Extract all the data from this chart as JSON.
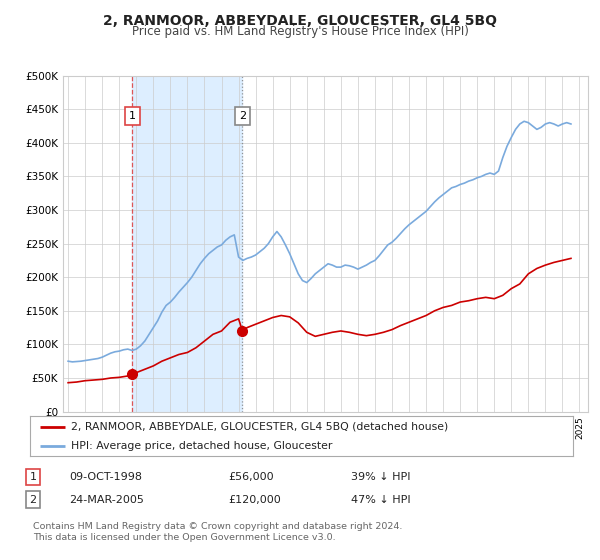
{
  "title": "2, RANMOOR, ABBEYDALE, GLOUCESTER, GL4 5BQ",
  "subtitle": "Price paid vs. HM Land Registry's House Price Index (HPI)",
  "ylim": [
    0,
    500000
  ],
  "yticks": [
    0,
    50000,
    100000,
    150000,
    200000,
    250000,
    300000,
    350000,
    400000,
    450000,
    500000
  ],
  "ytick_labels": [
    "£0",
    "£50K",
    "£100K",
    "£150K",
    "£200K",
    "£250K",
    "£300K",
    "£350K",
    "£400K",
    "£450K",
    "£500K"
  ],
  "xlim_start": 1994.7,
  "xlim_end": 2025.5,
  "xtick_years": [
    1995,
    1996,
    1997,
    1998,
    1999,
    2000,
    2001,
    2002,
    2003,
    2004,
    2005,
    2006,
    2007,
    2008,
    2009,
    2010,
    2011,
    2012,
    2013,
    2014,
    2015,
    2016,
    2017,
    2018,
    2019,
    2020,
    2021,
    2022,
    2023,
    2024,
    2025
  ],
  "sale1_x": 1998.77,
  "sale1_y": 56000,
  "sale1_label": "1",
  "sale2_x": 2005.23,
  "sale2_y": 120000,
  "sale2_label": "2",
  "sale1_vline_color": "#dd4444",
  "sale2_vline_color": "#888888",
  "sale1_dot_color": "#cc0000",
  "sale2_dot_color": "#cc0000",
  "hpi_line_color": "#7aaadd",
  "price_line_color": "#cc0000",
  "shading_color": "#ddeeff",
  "grid_color": "#cccccc",
  "background_color": "#ffffff",
  "legend_entry1": "2, RANMOOR, ABBEYDALE, GLOUCESTER, GL4 5BQ (detached house)",
  "legend_entry2": "HPI: Average price, detached house, Gloucester",
  "table_row1": [
    "1",
    "09-OCT-1998",
    "£56,000",
    "39% ↓ HPI"
  ],
  "table_row2": [
    "2",
    "24-MAR-2005",
    "£120,000",
    "47% ↓ HPI"
  ],
  "footer_line1": "Contains HM Land Registry data © Crown copyright and database right 2024.",
  "footer_line2": "This data is licensed under the Open Government Licence v3.0.",
  "hpi_data_x": [
    1995.0,
    1995.25,
    1995.5,
    1995.75,
    1996.0,
    1996.25,
    1996.5,
    1996.75,
    1997.0,
    1997.25,
    1997.5,
    1997.75,
    1998.0,
    1998.25,
    1998.5,
    1998.75,
    1999.0,
    1999.25,
    1999.5,
    1999.75,
    2000.0,
    2000.25,
    2000.5,
    2000.75,
    2001.0,
    2001.25,
    2001.5,
    2001.75,
    2002.0,
    2002.25,
    2002.5,
    2002.75,
    2003.0,
    2003.25,
    2003.5,
    2003.75,
    2004.0,
    2004.25,
    2004.5,
    2004.75,
    2005.0,
    2005.25,
    2005.5,
    2005.75,
    2006.0,
    2006.25,
    2006.5,
    2006.75,
    2007.0,
    2007.25,
    2007.5,
    2007.75,
    2008.0,
    2008.25,
    2008.5,
    2008.75,
    2009.0,
    2009.25,
    2009.5,
    2009.75,
    2010.0,
    2010.25,
    2010.5,
    2010.75,
    2011.0,
    2011.25,
    2011.5,
    2011.75,
    2012.0,
    2012.25,
    2012.5,
    2012.75,
    2013.0,
    2013.25,
    2013.5,
    2013.75,
    2014.0,
    2014.25,
    2014.5,
    2014.75,
    2015.0,
    2015.25,
    2015.5,
    2015.75,
    2016.0,
    2016.25,
    2016.5,
    2016.75,
    2017.0,
    2017.25,
    2017.5,
    2017.75,
    2018.0,
    2018.25,
    2018.5,
    2018.75,
    2019.0,
    2019.25,
    2019.5,
    2019.75,
    2020.0,
    2020.25,
    2020.5,
    2020.75,
    2021.0,
    2021.25,
    2021.5,
    2021.75,
    2022.0,
    2022.25,
    2022.5,
    2022.75,
    2023.0,
    2023.25,
    2023.5,
    2023.75,
    2024.0,
    2024.25,
    2024.5
  ],
  "hpi_data_y": [
    75000,
    74000,
    74500,
    75000,
    76000,
    77000,
    78000,
    79000,
    81000,
    84000,
    87000,
    89000,
    90000,
    92000,
    93000,
    91000,
    93000,
    98000,
    105000,
    115000,
    125000,
    135000,
    148000,
    158000,
    163000,
    170000,
    178000,
    185000,
    192000,
    200000,
    210000,
    220000,
    228000,
    235000,
    240000,
    245000,
    248000,
    255000,
    260000,
    263000,
    230000,
    225000,
    228000,
    230000,
    233000,
    238000,
    243000,
    250000,
    260000,
    268000,
    260000,
    248000,
    235000,
    220000,
    205000,
    195000,
    192000,
    198000,
    205000,
    210000,
    215000,
    220000,
    218000,
    215000,
    215000,
    218000,
    217000,
    215000,
    212000,
    215000,
    218000,
    222000,
    225000,
    232000,
    240000,
    248000,
    252000,
    258000,
    265000,
    272000,
    278000,
    283000,
    288000,
    293000,
    298000,
    305000,
    312000,
    318000,
    323000,
    328000,
    333000,
    335000,
    338000,
    340000,
    343000,
    345000,
    348000,
    350000,
    353000,
    355000,
    353000,
    358000,
    378000,
    395000,
    408000,
    420000,
    428000,
    432000,
    430000,
    425000,
    420000,
    423000,
    428000,
    430000,
    428000,
    425000,
    428000,
    430000,
    428000
  ],
  "price_data_x": [
    1995.0,
    1995.5,
    1996.0,
    1996.5,
    1997.0,
    1997.5,
    1998.0,
    1998.5,
    1998.77,
    1999.0,
    1999.5,
    2000.0,
    2000.5,
    2001.0,
    2001.5,
    2002.0,
    2002.5,
    2003.0,
    2003.5,
    2004.0,
    2004.5,
    2005.0,
    2005.23,
    2005.5,
    2006.0,
    2006.5,
    2007.0,
    2007.5,
    2008.0,
    2008.5,
    2009.0,
    2009.5,
    2010.0,
    2010.5,
    2011.0,
    2011.5,
    2012.0,
    2012.5,
    2013.0,
    2013.5,
    2014.0,
    2014.5,
    2015.0,
    2015.5,
    2016.0,
    2016.5,
    2017.0,
    2017.5,
    2018.0,
    2018.5,
    2019.0,
    2019.5,
    2020.0,
    2020.5,
    2021.0,
    2021.5,
    2022.0,
    2022.5,
    2023.0,
    2023.5,
    2024.0,
    2024.5
  ],
  "price_data_y": [
    43000,
    44000,
    46000,
    47000,
    48000,
    50000,
    51000,
    53000,
    56000,
    58000,
    63000,
    68000,
    75000,
    80000,
    85000,
    88000,
    95000,
    105000,
    115000,
    120000,
    133000,
    138000,
    120000,
    125000,
    130000,
    135000,
    140000,
    143000,
    141000,
    132000,
    118000,
    112000,
    115000,
    118000,
    120000,
    118000,
    115000,
    113000,
    115000,
    118000,
    122000,
    128000,
    133000,
    138000,
    143000,
    150000,
    155000,
    158000,
    163000,
    165000,
    168000,
    170000,
    168000,
    173000,
    183000,
    190000,
    205000,
    213000,
    218000,
    222000,
    225000,
    228000
  ]
}
